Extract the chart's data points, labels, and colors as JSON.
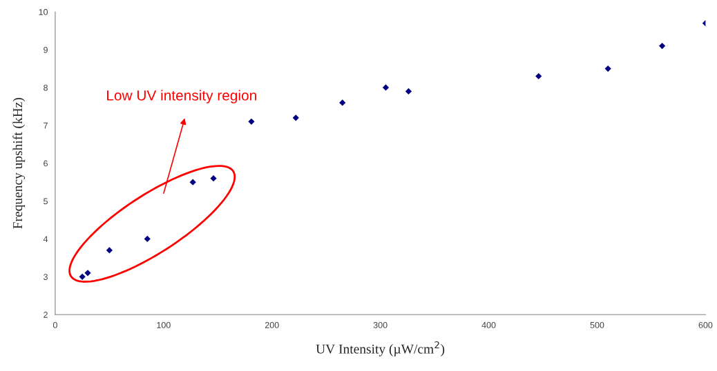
{
  "chart_data": {
    "type": "scatter",
    "xlabel": "UV Intensity (µW/cm$^{2}$)",
    "ylabel": "Frequency upshift (kHz)",
    "x": [
      25,
      30,
      50,
      85,
      127,
      146,
      181,
      222,
      265,
      305,
      326,
      446,
      510,
      560,
      600
    ],
    "series": [
      {
        "color": "#000080",
        "values": [
          3.0,
          3.1,
          3.7,
          4.0,
          5.5,
          5.6,
          7.1,
          7.2,
          7.6,
          8.0,
          7.9,
          8.3,
          8.5,
          9.1,
          9.7
        ]
      }
    ],
    "marker": "diamond",
    "xlim": [
      0,
      600
    ],
    "xticks": [
      0,
      100,
      200,
      300,
      400,
      500,
      600
    ],
    "ylim": [
      2,
      10
    ],
    "yticks": [
      2,
      3,
      4,
      5,
      6,
      7,
      8,
      9,
      10
    ],
    "annotations": [
      "Low UV intensity region"
    ]
  }
}
